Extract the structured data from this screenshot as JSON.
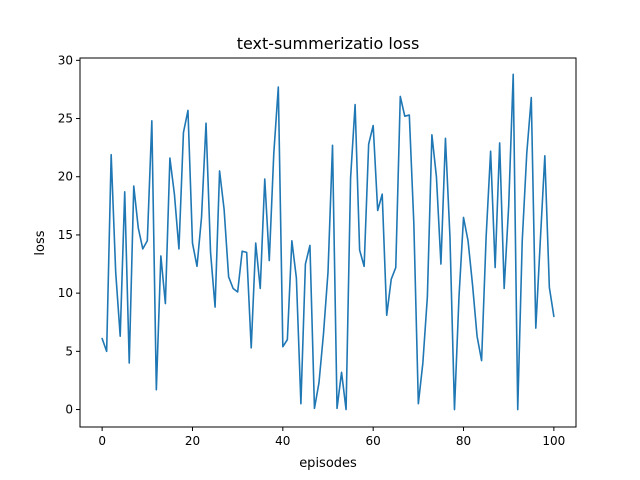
{
  "chart_data": {
    "type": "line",
    "title": "text-summerizatio loss",
    "xlabel": "episodes",
    "ylabel": "loss",
    "xlim": [
      -4.9,
      104.9
    ],
    "ylim": [
      -1.5,
      30.2
    ],
    "xticks": [
      0,
      20,
      40,
      60,
      80,
      100
    ],
    "yticks": [
      0,
      5,
      10,
      15,
      20,
      25,
      30
    ],
    "grid": false,
    "series_color": "#1f77b4",
    "series": [
      {
        "x": [
          0,
          1,
          2,
          3,
          4,
          5,
          6,
          7,
          8,
          9,
          10,
          11,
          12,
          13,
          14,
          15,
          16,
          17,
          18,
          19,
          20,
          21,
          22,
          23,
          24,
          25,
          26,
          27,
          28,
          29,
          30,
          31,
          32,
          33,
          34,
          35,
          36,
          37,
          38,
          39,
          40,
          41,
          42,
          43,
          44,
          45,
          46,
          47,
          48,
          49,
          50,
          51,
          52,
          53,
          54,
          55,
          56,
          57,
          58,
          59,
          60,
          61,
          62,
          63,
          64,
          65,
          66,
          67,
          68,
          69,
          70,
          71,
          72,
          73,
          74,
          75,
          76,
          77,
          78,
          79,
          80,
          81,
          82,
          83,
          84,
          85,
          86,
          87,
          88,
          89,
          90,
          91,
          92,
          93,
          94,
          95,
          96,
          97,
          98,
          99,
          100
        ],
        "values": [
          6.1,
          5.0,
          21.9,
          11.8,
          6.3,
          18.7,
          4.0,
          19.2,
          15.6,
          13.8,
          14.5,
          24.8,
          1.7,
          13.2,
          9.1,
          21.6,
          18.5,
          13.8,
          23.8,
          25.7,
          14.3,
          12.3,
          16.5,
          24.6,
          13.5,
          8.8,
          20.5,
          17.2,
          11.4,
          10.4,
          10.1,
          13.6,
          13.5,
          5.3,
          14.3,
          10.4,
          19.8,
          12.8,
          22.0,
          27.7,
          5.4,
          6.0,
          14.5,
          11.3,
          0.5,
          12.5,
          14.1,
          0.1,
          2.3,
          6.5,
          11.8,
          22.7,
          0.1,
          3.2,
          0.0,
          19.9,
          26.2,
          13.7,
          12.3,
          22.8,
          24.4,
          17.1,
          18.5,
          8.1,
          11.2,
          12.2,
          26.9,
          25.2,
          25.3,
          16.0,
          0.5,
          4.0,
          9.7,
          23.6,
          20.0,
          12.5,
          23.3,
          14.8,
          0.0,
          9.7,
          16.5,
          14.5,
          10.7,
          6.3,
          4.2,
          14.8,
          22.2,
          12.2,
          22.9,
          10.4,
          17.5,
          28.8,
          0.0,
          14.5,
          22.0,
          26.8,
          7.0,
          14.5,
          21.8,
          10.5,
          8.0
        ]
      }
    ]
  }
}
